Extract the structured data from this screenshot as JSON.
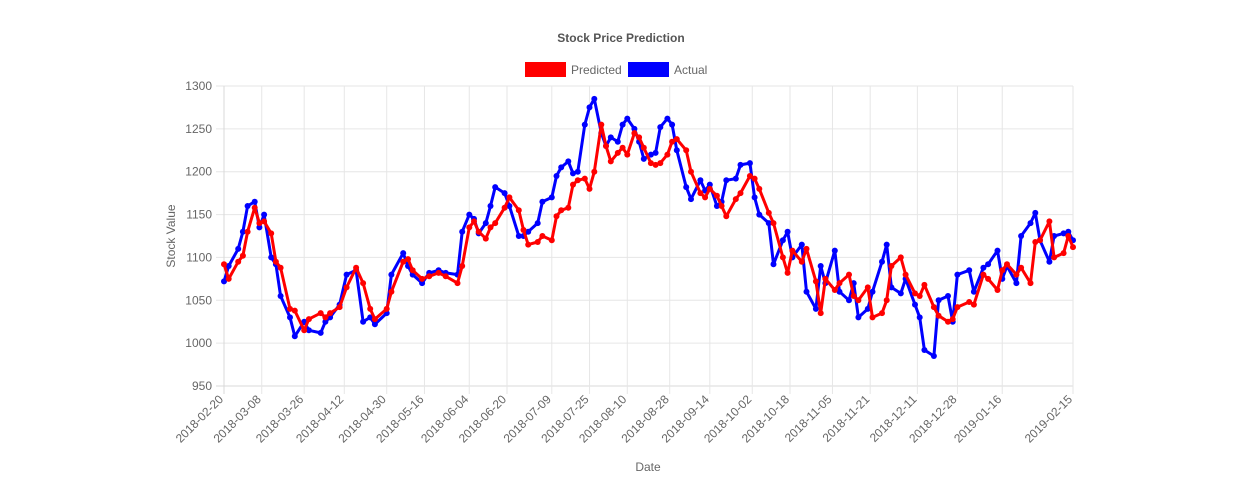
{
  "chart_data": {
    "type": "line",
    "title": "Stock Price Prediction",
    "xlabel": "Date",
    "ylabel": "Stock Value",
    "ylim": [
      950,
      1300
    ],
    "y_ticks": [
      950,
      1000,
      1050,
      1100,
      1150,
      1200,
      1250,
      1300
    ],
    "x_range": [
      "2018-02-20",
      "2019-02-15"
    ],
    "x_ticks": [
      "2018-02-20",
      "2018-03-08",
      "2018-03-26",
      "2018-04-12",
      "2018-04-30",
      "2018-05-16",
      "2018-06-04",
      "2018-06-20",
      "2018-07-09",
      "2018-07-25",
      "2018-08-10",
      "2018-08-28",
      "2018-09-14",
      "2018-10-02",
      "2018-10-18",
      "2018-11-05",
      "2018-11-21",
      "2018-12-11",
      "2018-12-28",
      "2019-01-16",
      "2019-02-15"
    ],
    "grid": true,
    "legend_position": "top",
    "series": [
      {
        "name": "Predicted",
        "color": "#ff0000",
        "points": [
          [
            "2018-02-20",
            1092
          ],
          [
            "2018-02-22",
            1075
          ],
          [
            "2018-02-26",
            1095
          ],
          [
            "2018-02-28",
            1102
          ],
          [
            "2018-03-02",
            1130
          ],
          [
            "2018-03-05",
            1158
          ],
          [
            "2018-03-07",
            1140
          ],
          [
            "2018-03-09",
            1142
          ],
          [
            "2018-03-12",
            1128
          ],
          [
            "2018-03-14",
            1095
          ],
          [
            "2018-03-16",
            1088
          ],
          [
            "2018-03-20",
            1040
          ],
          [
            "2018-03-22",
            1038
          ],
          [
            "2018-03-26",
            1015
          ],
          [
            "2018-03-28",
            1028
          ],
          [
            "2018-04-02",
            1035
          ],
          [
            "2018-04-04",
            1030
          ],
          [
            "2018-04-06",
            1035
          ],
          [
            "2018-04-10",
            1042
          ],
          [
            "2018-04-13",
            1065
          ],
          [
            "2018-04-17",
            1088
          ],
          [
            "2018-04-20",
            1070
          ],
          [
            "2018-04-23",
            1040
          ],
          [
            "2018-04-25",
            1028
          ],
          [
            "2018-04-30",
            1040
          ],
          [
            "2018-05-02",
            1060
          ],
          [
            "2018-05-07",
            1095
          ],
          [
            "2018-05-09",
            1098
          ],
          [
            "2018-05-11",
            1085
          ],
          [
            "2018-05-15",
            1075
          ],
          [
            "2018-05-18",
            1078
          ],
          [
            "2018-05-22",
            1082
          ],
          [
            "2018-05-25",
            1078
          ],
          [
            "2018-05-30",
            1070
          ],
          [
            "2018-06-01",
            1090
          ],
          [
            "2018-06-04",
            1135
          ],
          [
            "2018-06-06",
            1142
          ],
          [
            "2018-06-08",
            1130
          ],
          [
            "2018-06-11",
            1122
          ],
          [
            "2018-06-13",
            1135
          ],
          [
            "2018-06-15",
            1140
          ],
          [
            "2018-06-19",
            1158
          ],
          [
            "2018-06-21",
            1170
          ],
          [
            "2018-06-25",
            1155
          ],
          [
            "2018-06-27",
            1132
          ],
          [
            "2018-06-29",
            1115
          ],
          [
            "2018-07-03",
            1118
          ],
          [
            "2018-07-05",
            1125
          ],
          [
            "2018-07-09",
            1120
          ],
          [
            "2018-07-11",
            1148
          ],
          [
            "2018-07-13",
            1155
          ],
          [
            "2018-07-16",
            1158
          ],
          [
            "2018-07-18",
            1185
          ],
          [
            "2018-07-20",
            1190
          ],
          [
            "2018-07-23",
            1192
          ],
          [
            "2018-07-25",
            1180
          ],
          [
            "2018-07-27",
            1200
          ],
          [
            "2018-07-30",
            1255
          ],
          [
            "2018-08-01",
            1230
          ],
          [
            "2018-08-03",
            1212
          ],
          [
            "2018-08-06",
            1222
          ],
          [
            "2018-08-08",
            1228
          ],
          [
            "2018-08-10",
            1220
          ],
          [
            "2018-08-13",
            1245
          ],
          [
            "2018-08-15",
            1240
          ],
          [
            "2018-08-17",
            1228
          ],
          [
            "2018-08-20",
            1210
          ],
          [
            "2018-08-22",
            1208
          ],
          [
            "2018-08-24",
            1210
          ],
          [
            "2018-08-27",
            1220
          ],
          [
            "2018-08-29",
            1235
          ],
          [
            "2018-08-31",
            1238
          ],
          [
            "2018-09-04",
            1225
          ],
          [
            "2018-09-06",
            1200
          ],
          [
            "2018-09-10",
            1175
          ],
          [
            "2018-09-12",
            1170
          ],
          [
            "2018-09-14",
            1180
          ],
          [
            "2018-09-17",
            1172
          ],
          [
            "2018-09-19",
            1160
          ],
          [
            "2018-09-21",
            1148
          ],
          [
            "2018-09-25",
            1168
          ],
          [
            "2018-09-27",
            1175
          ],
          [
            "2018-10-01",
            1195
          ],
          [
            "2018-10-03",
            1192
          ],
          [
            "2018-10-05",
            1180
          ],
          [
            "2018-10-09",
            1152
          ],
          [
            "2018-10-11",
            1140
          ],
          [
            "2018-10-15",
            1100
          ],
          [
            "2018-10-17",
            1082
          ],
          [
            "2018-10-19",
            1108
          ],
          [
            "2018-10-23",
            1095
          ],
          [
            "2018-10-25",
            1110
          ],
          [
            "2018-10-29",
            1072
          ],
          [
            "2018-10-31",
            1035
          ],
          [
            "2018-11-02",
            1075
          ],
          [
            "2018-11-06",
            1062
          ],
          [
            "2018-11-08",
            1070
          ],
          [
            "2018-11-12",
            1080
          ],
          [
            "2018-11-14",
            1055
          ],
          [
            "2018-11-16",
            1050
          ],
          [
            "2018-11-20",
            1065
          ],
          [
            "2018-11-22",
            1030
          ],
          [
            "2018-11-26",
            1035
          ],
          [
            "2018-11-28",
            1050
          ],
          [
            "2018-11-30",
            1090
          ],
          [
            "2018-12-04",
            1100
          ],
          [
            "2018-12-06",
            1080
          ],
          [
            "2018-12-10",
            1058
          ],
          [
            "2018-12-12",
            1055
          ],
          [
            "2018-12-14",
            1068
          ],
          [
            "2018-12-18",
            1042
          ],
          [
            "2018-12-20",
            1032
          ],
          [
            "2018-12-24",
            1025
          ],
          [
            "2018-12-26",
            1028
          ],
          [
            "2018-12-28",
            1042
          ],
          [
            "2019-01-02",
            1048
          ],
          [
            "2019-01-04",
            1045
          ],
          [
            "2019-01-08",
            1080
          ],
          [
            "2019-01-10",
            1075
          ],
          [
            "2019-01-14",
            1062
          ],
          [
            "2019-01-16",
            1085
          ],
          [
            "2019-01-18",
            1092
          ],
          [
            "2019-01-22",
            1080
          ],
          [
            "2019-01-24",
            1088
          ],
          [
            "2019-01-28",
            1070
          ],
          [
            "2019-01-30",
            1118
          ],
          [
            "2019-02-01",
            1120
          ],
          [
            "2019-02-05",
            1142
          ],
          [
            "2019-02-07",
            1100
          ],
          [
            "2019-02-11",
            1105
          ],
          [
            "2019-02-13",
            1125
          ],
          [
            "2019-02-15",
            1112
          ]
        ]
      },
      {
        "name": "Actual",
        "color": "#0000ff",
        "points": [
          [
            "2018-02-20",
            1072
          ],
          [
            "2018-02-22",
            1090
          ],
          [
            "2018-02-26",
            1110
          ],
          [
            "2018-02-28",
            1130
          ],
          [
            "2018-03-02",
            1160
          ],
          [
            "2018-03-05",
            1165
          ],
          [
            "2018-03-07",
            1135
          ],
          [
            "2018-03-09",
            1150
          ],
          [
            "2018-03-12",
            1100
          ],
          [
            "2018-03-14",
            1092
          ],
          [
            "2018-03-16",
            1055
          ],
          [
            "2018-03-20",
            1030
          ],
          [
            "2018-03-22",
            1008
          ],
          [
            "2018-03-26",
            1025
          ],
          [
            "2018-03-28",
            1015
          ],
          [
            "2018-04-02",
            1012
          ],
          [
            "2018-04-04",
            1025
          ],
          [
            "2018-04-06",
            1030
          ],
          [
            "2018-04-10",
            1045
          ],
          [
            "2018-04-13",
            1080
          ],
          [
            "2018-04-17",
            1085
          ],
          [
            "2018-04-20",
            1025
          ],
          [
            "2018-04-23",
            1030
          ],
          [
            "2018-04-25",
            1022
          ],
          [
            "2018-04-30",
            1035
          ],
          [
            "2018-05-02",
            1080
          ],
          [
            "2018-05-07",
            1105
          ],
          [
            "2018-05-09",
            1090
          ],
          [
            "2018-05-11",
            1080
          ],
          [
            "2018-05-15",
            1070
          ],
          [
            "2018-05-18",
            1082
          ],
          [
            "2018-05-22",
            1085
          ],
          [
            "2018-05-25",
            1082
          ],
          [
            "2018-05-30",
            1080
          ],
          [
            "2018-06-01",
            1130
          ],
          [
            "2018-06-04",
            1150
          ],
          [
            "2018-06-06",
            1145
          ],
          [
            "2018-06-08",
            1128
          ],
          [
            "2018-06-11",
            1140
          ],
          [
            "2018-06-13",
            1160
          ],
          [
            "2018-06-15",
            1182
          ],
          [
            "2018-06-19",
            1175
          ],
          [
            "2018-06-21",
            1160
          ],
          [
            "2018-06-25",
            1125
          ],
          [
            "2018-06-27",
            1125
          ],
          [
            "2018-06-29",
            1130
          ],
          [
            "2018-07-03",
            1140
          ],
          [
            "2018-07-05",
            1165
          ],
          [
            "2018-07-09",
            1170
          ],
          [
            "2018-07-11",
            1195
          ],
          [
            "2018-07-13",
            1205
          ],
          [
            "2018-07-16",
            1212
          ],
          [
            "2018-07-18",
            1198
          ],
          [
            "2018-07-20",
            1200
          ],
          [
            "2018-07-23",
            1255
          ],
          [
            "2018-07-25",
            1275
          ],
          [
            "2018-07-27",
            1285
          ],
          [
            "2018-07-30",
            1245
          ],
          [
            "2018-08-01",
            1230
          ],
          [
            "2018-08-03",
            1240
          ],
          [
            "2018-08-06",
            1235
          ],
          [
            "2018-08-08",
            1255
          ],
          [
            "2018-08-10",
            1262
          ],
          [
            "2018-08-13",
            1250
          ],
          [
            "2018-08-15",
            1235
          ],
          [
            "2018-08-17",
            1215
          ],
          [
            "2018-08-20",
            1220
          ],
          [
            "2018-08-22",
            1222
          ],
          [
            "2018-08-24",
            1252
          ],
          [
            "2018-08-27",
            1262
          ],
          [
            "2018-08-29",
            1255
          ],
          [
            "2018-08-31",
            1225
          ],
          [
            "2018-09-04",
            1182
          ],
          [
            "2018-09-06",
            1168
          ],
          [
            "2018-09-10",
            1190
          ],
          [
            "2018-09-12",
            1178
          ],
          [
            "2018-09-14",
            1185
          ],
          [
            "2018-09-17",
            1160
          ],
          [
            "2018-09-19",
            1165
          ],
          [
            "2018-09-21",
            1190
          ],
          [
            "2018-09-25",
            1192
          ],
          [
            "2018-09-27",
            1208
          ],
          [
            "2018-10-01",
            1210
          ],
          [
            "2018-10-03",
            1170
          ],
          [
            "2018-10-05",
            1150
          ],
          [
            "2018-10-09",
            1140
          ],
          [
            "2018-10-11",
            1092
          ],
          [
            "2018-10-15",
            1120
          ],
          [
            "2018-10-17",
            1130
          ],
          [
            "2018-10-19",
            1100
          ],
          [
            "2018-10-23",
            1115
          ],
          [
            "2018-10-25",
            1060
          ],
          [
            "2018-10-29",
            1040
          ],
          [
            "2018-10-31",
            1090
          ],
          [
            "2018-11-02",
            1070
          ],
          [
            "2018-11-06",
            1108
          ],
          [
            "2018-11-08",
            1060
          ],
          [
            "2018-11-12",
            1050
          ],
          [
            "2018-11-14",
            1070
          ],
          [
            "2018-11-16",
            1030
          ],
          [
            "2018-11-20",
            1040
          ],
          [
            "2018-11-22",
            1060
          ],
          [
            "2018-11-26",
            1095
          ],
          [
            "2018-11-28",
            1115
          ],
          [
            "2018-11-30",
            1065
          ],
          [
            "2018-12-04",
            1058
          ],
          [
            "2018-12-06",
            1075
          ],
          [
            "2018-12-10",
            1045
          ],
          [
            "2018-12-12",
            1030
          ],
          [
            "2018-12-14",
            992
          ],
          [
            "2018-12-18",
            985
          ],
          [
            "2018-12-20",
            1050
          ],
          [
            "2018-12-24",
            1055
          ],
          [
            "2018-12-26",
            1025
          ],
          [
            "2018-12-28",
            1080
          ],
          [
            "2019-01-02",
            1085
          ],
          [
            "2019-01-04",
            1060
          ],
          [
            "2019-01-08",
            1088
          ],
          [
            "2019-01-10",
            1092
          ],
          [
            "2019-01-14",
            1108
          ],
          [
            "2019-01-16",
            1075
          ],
          [
            "2019-01-18",
            1090
          ],
          [
            "2019-01-22",
            1070
          ],
          [
            "2019-01-24",
            1125
          ],
          [
            "2019-01-28",
            1140
          ],
          [
            "2019-01-30",
            1152
          ],
          [
            "2019-02-01",
            1120
          ],
          [
            "2019-02-05",
            1095
          ],
          [
            "2019-02-07",
            1125
          ],
          [
            "2019-02-11",
            1128
          ],
          [
            "2019-02-13",
            1130
          ],
          [
            "2019-02-15",
            1120
          ]
        ]
      }
    ]
  }
}
